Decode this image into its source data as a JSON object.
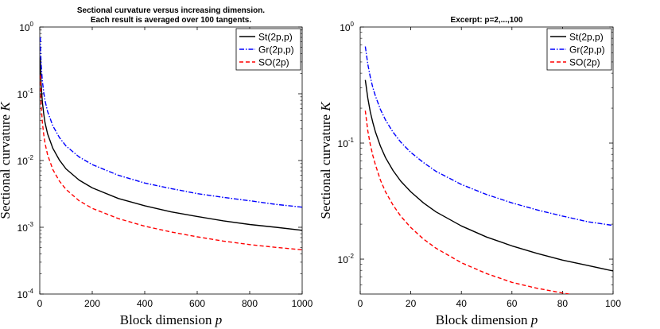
{
  "chart_data": [
    {
      "type": "line",
      "title_lines": [
        "Sectional curvature versus increasing dimension.",
        "Each result is averaged over 100 tangents."
      ],
      "xlabel": "Block dimension",
      "xlabel_var": "p",
      "ylabel": "Sectional curvature",
      "ylabel_var": "K",
      "xlim": [
        0,
        1000
      ],
      "ylim": [
        0.0001,
        1
      ],
      "yscale": "log",
      "xticks": [
        0,
        200,
        400,
        600,
        800,
        1000
      ],
      "yticks": [
        {
          "base": "10",
          "exp": "-4",
          "value": 0.0001
        },
        {
          "base": "10",
          "exp": "-3",
          "value": 0.001
        },
        {
          "base": "10",
          "exp": "-2",
          "value": 0.01
        },
        {
          "base": "10",
          "exp": "-1",
          "value": 0.1
        },
        {
          "base": "10",
          "exp": "0",
          "value": 1
        }
      ],
      "legend_position": "top-right",
      "series": [
        {
          "name": "St(2p,p)",
          "color": "#000000",
          "dash": "solid",
          "x": [
            2,
            3,
            5,
            7,
            10,
            15,
            20,
            30,
            50,
            75,
            100,
            150,
            200,
            300,
            400,
            500,
            600,
            700,
            800,
            900,
            1000
          ],
          "y": [
            0.35,
            0.24,
            0.15,
            0.11,
            0.075,
            0.05,
            0.037,
            0.025,
            0.0152,
            0.0101,
            0.0075,
            0.0051,
            0.0039,
            0.0027,
            0.0021,
            0.0017,
            0.00145,
            0.00125,
            0.0011,
            0.001,
            0.0009
          ]
        },
        {
          "name": "Gr(2p,p)",
          "color": "#0000ff",
          "dash": "dash-dot",
          "x": [
            2,
            3,
            5,
            7,
            10,
            15,
            20,
            30,
            50,
            75,
            100,
            150,
            200,
            300,
            400,
            500,
            600,
            700,
            800,
            900,
            1000
          ],
          "y": [
            0.7,
            0.48,
            0.3,
            0.22,
            0.155,
            0.105,
            0.079,
            0.054,
            0.033,
            0.022,
            0.0165,
            0.0113,
            0.0087,
            0.006,
            0.0046,
            0.0038,
            0.0032,
            0.0028,
            0.0025,
            0.0022,
            0.002
          ]
        },
        {
          "name": "SO(2p)",
          "color": "#ff0000",
          "dash": "dashed",
          "x": [
            2,
            3,
            5,
            7,
            10,
            15,
            20,
            30,
            50,
            75,
            100,
            150,
            200,
            300,
            400,
            500,
            600,
            700,
            800,
            900,
            1000
          ],
          "y": [
            0.19,
            0.125,
            0.075,
            0.054,
            0.037,
            0.0245,
            0.0182,
            0.0121,
            0.0073,
            0.0049,
            0.0037,
            0.0025,
            0.00192,
            0.00135,
            0.00104,
            0.00085,
            0.00072,
            0.00062,
            0.00055,
            0.0005,
            0.00046
          ]
        }
      ]
    },
    {
      "type": "line",
      "title_lines": [
        "Excerpt: p=2,...,100"
      ],
      "xlabel": "Block dimension",
      "xlabel_var": "p",
      "ylabel": "Sectional curvature",
      "ylabel_var": "K",
      "xlim": [
        0,
        100
      ],
      "ylim": [
        0.005,
        1
      ],
      "yscale": "log",
      "xticks": [
        0,
        20,
        40,
        60,
        80,
        100
      ],
      "yticks": [
        {
          "base": "10",
          "exp": "-2",
          "value": 0.01
        },
        {
          "base": "10",
          "exp": "-1",
          "value": 0.1
        },
        {
          "base": "10",
          "exp": "0",
          "value": 1
        }
      ],
      "legend_position": "top-right",
      "series": [
        {
          "name": "St(2p,p)",
          "color": "#000000",
          "dash": "solid",
          "x": [
            2,
            3,
            4,
            5,
            6,
            8,
            10,
            13,
            16,
            20,
            25,
            30,
            40,
            50,
            60,
            70,
            80,
            90,
            100
          ],
          "y": [
            0.35,
            0.245,
            0.185,
            0.15,
            0.125,
            0.094,
            0.075,
            0.058,
            0.047,
            0.038,
            0.0305,
            0.0255,
            0.0193,
            0.0155,
            0.013,
            0.0112,
            0.0098,
            0.0088,
            0.0079
          ]
        },
        {
          "name": "Gr(2p,p)",
          "color": "#0000ff",
          "dash": "dash-dot",
          "x": [
            2,
            3,
            4,
            5,
            6,
            8,
            10,
            13,
            16,
            20,
            25,
            30,
            40,
            50,
            60,
            70,
            80,
            90,
            100
          ],
          "y": [
            0.68,
            0.48,
            0.37,
            0.3,
            0.255,
            0.195,
            0.158,
            0.124,
            0.102,
            0.083,
            0.068,
            0.057,
            0.044,
            0.036,
            0.0305,
            0.0265,
            0.0235,
            0.021,
            0.0195
          ]
        },
        {
          "name": "SO(2p)",
          "color": "#ff0000",
          "dash": "dashed",
          "x": [
            2,
            3,
            4,
            5,
            6,
            8,
            10,
            13,
            16,
            20,
            25,
            30,
            40,
            50,
            60,
            70,
            80,
            90,
            100
          ],
          "y": [
            0.19,
            0.128,
            0.097,
            0.078,
            0.065,
            0.048,
            0.038,
            0.0292,
            0.0235,
            0.0187,
            0.0149,
            0.0124,
            0.0093,
            0.0075,
            0.0063,
            0.0056,
            0.0051,
            0.0047,
            0.0044
          ]
        }
      ]
    }
  ]
}
